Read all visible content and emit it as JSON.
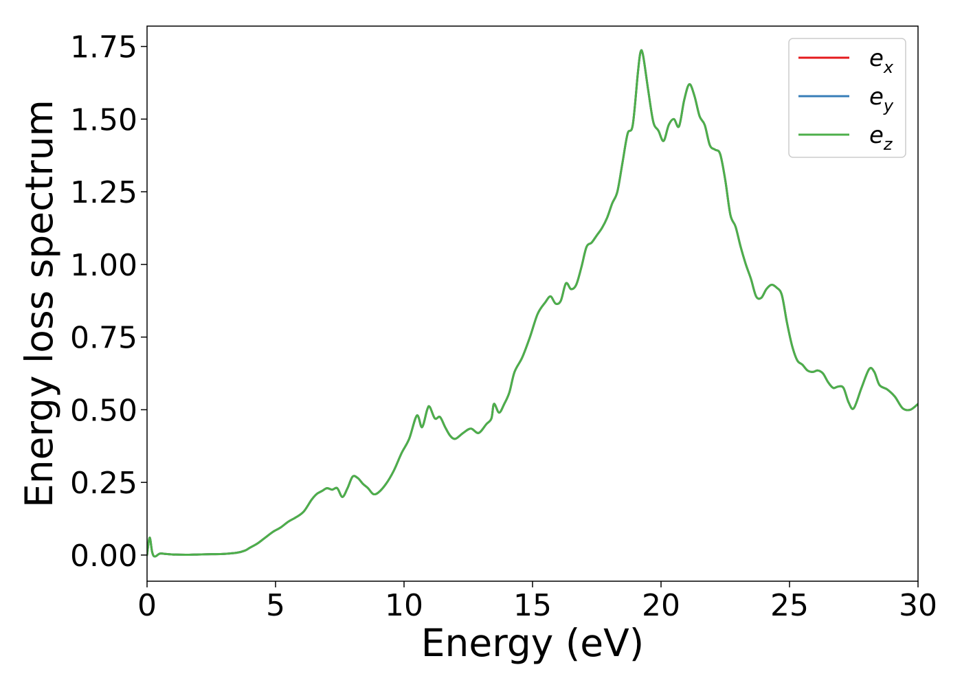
{
  "chart_data": {
    "type": "line",
    "xlabel": "Energy (eV)",
    "ylabel": "Energy loss spectrum",
    "xlim": [
      0,
      30
    ],
    "ylim": [
      -0.09,
      1.82
    ],
    "xticks": [
      0,
      5,
      10,
      15,
      20,
      25,
      30
    ],
    "xtick_labels": [
      "0",
      "5",
      "10",
      "15",
      "20",
      "25",
      "30"
    ],
    "yticks": [
      0.0,
      0.25,
      0.5,
      0.75,
      1.0,
      1.25,
      1.5,
      1.75
    ],
    "ytick_labels": [
      "0.00",
      "0.25",
      "0.50",
      "0.75",
      "1.00",
      "1.25",
      "1.50",
      "1.75"
    ],
    "grid": false,
    "legend": "top-right",
    "series": [
      {
        "name": "e",
        "sub": "x",
        "color": "#e41a1c"
      },
      {
        "name": "e",
        "sub": "y",
        "color": "#377eb8"
      },
      {
        "name": "e",
        "sub": "z",
        "color": "#4daf4a"
      }
    ],
    "x": [
      0.0,
      0.1,
      0.2,
      0.3,
      0.5,
      0.7,
      1.0,
      1.5,
      2.0,
      2.5,
      3.0,
      3.5,
      3.8,
      4.0,
      4.3,
      4.6,
      4.9,
      5.2,
      5.5,
      5.8,
      6.1,
      6.4,
      6.6,
      6.8,
      7.0,
      7.2,
      7.4,
      7.6,
      7.8,
      8.0,
      8.2,
      8.4,
      8.6,
      8.8,
      9.0,
      9.3,
      9.6,
      9.9,
      10.2,
      10.5,
      10.7,
      10.9,
      11.0,
      11.2,
      11.4,
      11.6,
      11.8,
      12.0,
      12.3,
      12.6,
      12.9,
      13.2,
      13.4,
      13.5,
      13.7,
      13.9,
      14.1,
      14.3,
      14.6,
      14.9,
      15.2,
      15.5,
      15.7,
      15.9,
      16.1,
      16.3,
      16.5,
      16.7,
      16.9,
      17.1,
      17.3,
      17.5,
      17.7,
      17.9,
      18.1,
      18.3,
      18.5,
      18.7,
      18.9,
      19.1,
      19.2,
      19.3,
      19.5,
      19.7,
      19.9,
      20.1,
      20.3,
      20.5,
      20.7,
      20.9,
      21.1,
      21.3,
      21.5,
      21.7,
      21.9,
      22.1,
      22.3,
      22.5,
      22.7,
      22.9,
      23.1,
      23.3,
      23.5,
      23.7,
      23.9,
      24.1,
      24.3,
      24.5,
      24.7,
      24.9,
      25.1,
      25.3,
      25.5,
      25.7,
      25.9,
      26.1,
      26.3,
      26.5,
      26.7,
      26.9,
      27.1,
      27.3,
      27.5,
      27.8,
      28.1,
      28.3,
      28.5,
      28.8,
      29.1,
      29.4,
      29.7,
      30.0
    ],
    "values": [
      0.0,
      0.06,
      0.01,
      -0.005,
      0.005,
      0.004,
      0.002,
      0.001,
      0.002,
      0.003,
      0.004,
      0.008,
      0.015,
      0.025,
      0.04,
      0.06,
      0.08,
      0.095,
      0.115,
      0.13,
      0.15,
      0.19,
      0.21,
      0.22,
      0.23,
      0.225,
      0.23,
      0.2,
      0.23,
      0.27,
      0.265,
      0.245,
      0.23,
      0.21,
      0.215,
      0.245,
      0.29,
      0.35,
      0.4,
      0.48,
      0.44,
      0.5,
      0.51,
      0.47,
      0.475,
      0.44,
      0.41,
      0.4,
      0.42,
      0.435,
      0.42,
      0.45,
      0.47,
      0.52,
      0.49,
      0.52,
      0.56,
      0.63,
      0.68,
      0.75,
      0.83,
      0.87,
      0.89,
      0.865,
      0.875,
      0.935,
      0.915,
      0.93,
      0.99,
      1.06,
      1.075,
      1.1,
      1.125,
      1.16,
      1.21,
      1.25,
      1.35,
      1.45,
      1.48,
      1.66,
      1.73,
      1.72,
      1.6,
      1.49,
      1.46,
      1.425,
      1.48,
      1.5,
      1.475,
      1.565,
      1.62,
      1.58,
      1.51,
      1.48,
      1.41,
      1.395,
      1.38,
      1.29,
      1.17,
      1.13,
      1.06,
      1.0,
      0.95,
      0.89,
      0.885,
      0.915,
      0.93,
      0.92,
      0.895,
      0.8,
      0.72,
      0.67,
      0.655,
      0.635,
      0.63,
      0.635,
      0.625,
      0.595,
      0.575,
      0.58,
      0.575,
      0.525,
      0.505,
      0.575,
      0.64,
      0.63,
      0.585,
      0.57,
      0.545,
      0.505,
      0.5,
      0.52
    ]
  }
}
